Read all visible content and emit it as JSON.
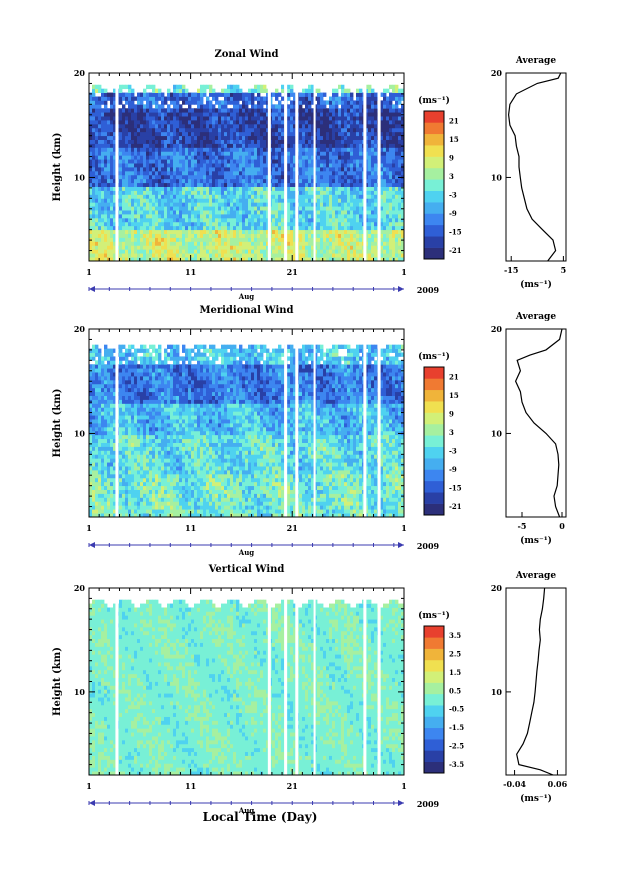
{
  "footer": {
    "xaxis_title": "Local Time (Day)"
  },
  "chart_data": [
    {
      "type": "heatmap",
      "title": "Zonal Wind",
      "ylabel": "Height (km)",
      "ylim": [
        2,
        20
      ],
      "yticks": [
        10,
        20
      ],
      "xlim": [
        1,
        32
      ],
      "xticks": [
        "1",
        "11",
        "21",
        "1"
      ],
      "xlabel": "Aug",
      "year": "2009",
      "colorbar": {
        "unit": "(ms⁻¹)",
        "ticks": [
          "21",
          "15",
          "9",
          "3",
          "-3",
          "-9",
          "-15",
          "-21"
        ],
        "range": [
          -24,
          24
        ]
      },
      "missing_days": [
        3.6,
        3.9,
        18.6,
        18.9,
        20.2,
        20.5,
        21.3,
        21.6,
        23.1,
        23.3,
        28.0,
        28.3,
        29.4,
        29.7
      ],
      "layers": [
        {
          "from": 2,
          "to": 5,
          "value": 6
        },
        {
          "from": 5,
          "to": 9,
          "value": -3
        },
        {
          "from": 9,
          "to": 13,
          "value": -13
        },
        {
          "from": 13,
          "to": 16.5,
          "value": -18
        },
        {
          "from": 16.5,
          "to": 18,
          "value": -14
        },
        {
          "from": 18,
          "to": 19,
          "value": 0
        }
      ]
    },
    {
      "type": "line",
      "title": "Average",
      "xlabel": "(ms⁻¹)",
      "xlim": [
        -17,
        6
      ],
      "xticks": [
        "-15",
        "5"
      ],
      "ylim": [
        2,
        20
      ],
      "yticks": [
        10,
        20
      ],
      "y": [
        2,
        3,
        4,
        5,
        6,
        7,
        8,
        9,
        10,
        11,
        12,
        13,
        14,
        15,
        16,
        17,
        18,
        19,
        19.5,
        20
      ],
      "x": [
        -1,
        2,
        1,
        -3,
        -7,
        -9,
        -10,
        -11,
        -11.5,
        -12,
        -12,
        -13,
        -13.5,
        -15.5,
        -16,
        -15.5,
        -13,
        -5,
        3,
        4
      ]
    },
    {
      "type": "heatmap",
      "title": "Meridional Wind",
      "ylabel": "Height (km)",
      "ylim": [
        2,
        20
      ],
      "yticks": [
        10,
        20
      ],
      "xlim": [
        1,
        32
      ],
      "xticks": [
        "1",
        "11",
        "21",
        "1"
      ],
      "xlabel": "Aug",
      "year": "2009",
      "colorbar": {
        "unit": "(ms⁻¹)",
        "ticks": [
          "21",
          "15",
          "9",
          "3",
          "-3",
          "-9",
          "-15",
          "-21"
        ],
        "range": [
          -24,
          24
        ]
      },
      "missing_days": [
        3.6,
        3.9,
        20.2,
        20.5,
        21.3,
        21.6,
        23.1,
        23.3,
        28.0,
        28.3,
        29.4,
        29.7
      ],
      "layers": [
        {
          "from": 2,
          "to": 6,
          "value": 0
        },
        {
          "from": 6,
          "to": 10,
          "value": -2
        },
        {
          "from": 10,
          "to": 13,
          "value": -6
        },
        {
          "from": 13,
          "to": 16.5,
          "value": -12
        },
        {
          "from": 16.5,
          "to": 18.5,
          "value": -5
        }
      ]
    },
    {
      "type": "line",
      "title": "Average",
      "xlabel": "(ms⁻¹)",
      "xlim": [
        -7,
        0.5
      ],
      "xticks": [
        "-5",
        "0"
      ],
      "ylim": [
        2,
        20
      ],
      "yticks": [
        10,
        20
      ],
      "y": [
        2,
        3,
        4,
        5,
        6,
        7,
        8,
        9,
        10,
        11,
        12,
        13,
        14,
        15,
        16,
        17,
        17.5,
        18,
        19,
        20
      ],
      "x": [
        -0.3,
        -0.8,
        -1,
        -0.6,
        -0.5,
        -0.4,
        -0.5,
        -0.8,
        -2,
        -3.5,
        -4.5,
        -5,
        -5.2,
        -5.8,
        -5.2,
        -5.6,
        -4,
        -2,
        -0.3,
        0
      ]
    },
    {
      "type": "heatmap",
      "title": "Vertical Wind",
      "ylabel": "Height (km)",
      "ylim": [
        2,
        20
      ],
      "yticks": [
        10,
        20
      ],
      "xlim": [
        1,
        32
      ],
      "xticks": [
        "1",
        "11",
        "21",
        "1"
      ],
      "xlabel": "Aug",
      "year": "2009",
      "colorbar": {
        "unit": "(ms⁻¹)",
        "ticks": [
          "3.5",
          "2.5",
          "1.5",
          "0.5",
          "-0.5",
          "-1.5",
          "-2.5",
          "-3.5"
        ],
        "range": [
          -4,
          4
        ]
      },
      "missing_days": [
        3.6,
        3.9,
        18.6,
        18.9,
        20.2,
        20.5,
        21.3,
        21.6,
        23.1,
        23.3,
        28.0,
        28.3,
        29.4,
        29.7
      ],
      "layers": [
        {
          "from": 2,
          "to": 20,
          "value": 0.1
        }
      ]
    },
    {
      "type": "line",
      "title": "Average",
      "xlabel": "(ms⁻¹)",
      "xlim": [
        -0.06,
        0.08
      ],
      "xticks": [
        "-0.04",
        "0.06"
      ],
      "ylim": [
        2,
        20
      ],
      "yticks": [
        10,
        20
      ],
      "y": [
        2,
        2.5,
        3,
        4,
        5,
        6,
        7,
        8,
        9,
        10,
        11,
        12,
        13,
        14,
        15,
        16,
        17,
        18,
        19,
        20
      ],
      "x": [
        0.05,
        0.02,
        -0.03,
        -0.035,
        -0.02,
        -0.01,
        -0.005,
        0.0,
        0.005,
        0.008,
        0.01,
        0.012,
        0.015,
        0.017,
        0.02,
        0.018,
        0.02,
        0.025,
        0.028,
        0.03
      ]
    }
  ]
}
